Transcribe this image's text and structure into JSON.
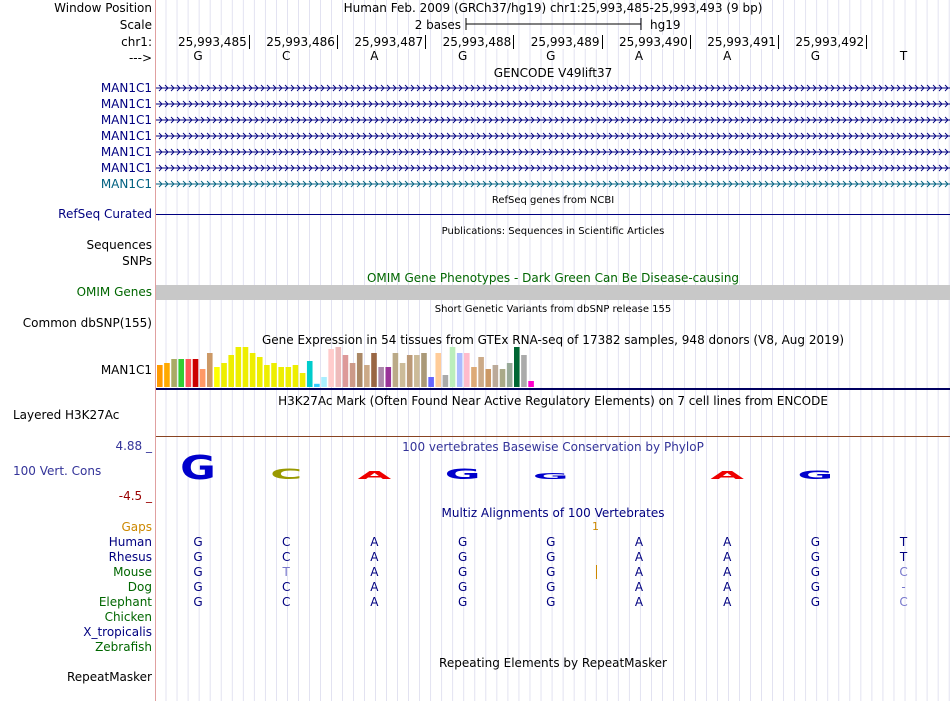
{
  "header": {
    "window_position_label": "Window Position",
    "window_position": "Human Feb. 2009 (GRCh37/hg19)   chr1:25,993,485-25,993,493 (9 bp)",
    "scale_label": "Scale",
    "scale_value": "2 bases",
    "scale_assembly": "hg19",
    "chrom_label": "chr1:",
    "strand_label": "--->",
    "positions": [
      "25,993,485",
      "25,993,486",
      "25,993,487",
      "25,993,488",
      "25,993,489",
      "25,993,490",
      "25,993,491",
      "25,993,492"
    ]
  },
  "bases": [
    "G",
    "C",
    "A",
    "G",
    "G",
    "A",
    "A",
    "G",
    "T"
  ],
  "tracks": {
    "gencode": {
      "title": "GENCODE V49lift37",
      "genes": [
        "MAN1C1",
        "MAN1C1",
        "MAN1C1",
        "MAN1C1",
        "MAN1C1",
        "MAN1C1",
        "MAN1C1"
      ]
    },
    "refseq": {
      "title": "RefSeq genes from NCBI",
      "label": "RefSeq Curated"
    },
    "publications": {
      "title": "Publications: Sequences in Scientific Articles",
      "label_sequences": "Sequences",
      "label_snps": "SNPs"
    },
    "omim": {
      "title": "OMIM Gene Phenotypes - Dark Green Can Be Disease-causing",
      "label": "OMIM Genes"
    },
    "dbsnp": {
      "title": "Short Genetic Variants from dbSNP release 155",
      "label": "Common dbSNP(155)"
    },
    "gtex": {
      "title": "Gene Expression in 54 tissues from GTEx RNA-seq of 17382 samples, 948 donors (V8, Aug 2019)",
      "label": "MAN1C1",
      "bars": [
        {
          "v": 0.55,
          "c": "#ff9900"
        },
        {
          "v": 0.6,
          "c": "#ffaa00"
        },
        {
          "v": 0.7,
          "c": "#aaaa66"
        },
        {
          "v": 0.7,
          "c": "#33cc33"
        },
        {
          "v": 0.7,
          "c": "#ff5555"
        },
        {
          "v": 0.7,
          "c": "#cc0000"
        },
        {
          "v": 0.45,
          "c": "#ff9966"
        },
        {
          "v": 0.85,
          "c": "#cc9966"
        },
        {
          "v": 0.5,
          "c": "#ffff00"
        },
        {
          "v": 0.6,
          "c": "#eeee00"
        },
        {
          "v": 0.8,
          "c": "#eeee00"
        },
        {
          "v": 1.0,
          "c": "#eeee00"
        },
        {
          "v": 1.0,
          "c": "#eeee00"
        },
        {
          "v": 0.85,
          "c": "#eeee00"
        },
        {
          "v": 0.75,
          "c": "#eeee00"
        },
        {
          "v": 0.55,
          "c": "#eeee00"
        },
        {
          "v": 0.6,
          "c": "#eeee00"
        },
        {
          "v": 0.5,
          "c": "#eeee00"
        },
        {
          "v": 0.5,
          "c": "#eeee00"
        },
        {
          "v": 0.55,
          "c": "#eeee00"
        },
        {
          "v": 0.35,
          "c": "#eeee00"
        },
        {
          "v": 0.65,
          "c": "#00cccc"
        },
        {
          "v": 0.08,
          "c": "#33ccff"
        },
        {
          "v": 0.25,
          "c": "#aaeeff"
        },
        {
          "v": 0.95,
          "c": "#ffcccc"
        },
        {
          "v": 1.0,
          "c": "#eebbbb"
        },
        {
          "v": 0.8,
          "c": "#dd9999"
        },
        {
          "v": 0.6,
          "c": "#cc9988"
        },
        {
          "v": 0.85,
          "c": "#aa8866"
        },
        {
          "v": 0.55,
          "c": "#ccaa88"
        },
        {
          "v": 0.85,
          "c": "#996644"
        },
        {
          "v": 0.5,
          "c": "#aa88aa"
        },
        {
          "v": 0.5,
          "c": "#993399"
        },
        {
          "v": 0.85,
          "c": "#bbaa88"
        },
        {
          "v": 0.6,
          "c": "#ccbb99"
        },
        {
          "v": 0.8,
          "c": "#bb9977"
        },
        {
          "v": 0.8,
          "c": "#ccbb99"
        },
        {
          "v": 0.85,
          "c": "#aa9977"
        },
        {
          "v": 0.25,
          "c": "#6666ff"
        },
        {
          "v": 0.85,
          "c": "#ffcc99"
        },
        {
          "v": 0.3,
          "c": "#aaaaaa"
        },
        {
          "v": 1.0,
          "c": "#bbeebb"
        },
        {
          "v": 0.85,
          "c": "#aabbff"
        },
        {
          "v": 0.85,
          "c": "#ffbbcc"
        },
        {
          "v": 0.5,
          "c": "#ddaa77"
        },
        {
          "v": 0.75,
          "c": "#ccaa88"
        },
        {
          "v": 0.45,
          "c": "#cc9966"
        },
        {
          "v": 0.55,
          "c": "#bbaa99"
        },
        {
          "v": 0.45,
          "c": "#aaaa88"
        },
        {
          "v": 0.6,
          "c": "#99aa99"
        },
        {
          "v": 1.0,
          "c": "#006633"
        },
        {
          "v": 0.8,
          "c": "#aaaaaa"
        },
        {
          "v": 0.15,
          "c": "#ff00cc"
        }
      ]
    },
    "h3k27ac": {
      "title": "H3K27Ac Mark (Often Found Near Active Regulatory Elements) on 7 cell lines from ENCODE",
      "label": "Layered H3K27Ac"
    },
    "phylop": {
      "title": "100 vertebrates Basewise Conservation by PhyloP",
      "label": "100 Vert. Cons",
      "max": "4.88 _",
      "min": "-4.5 _",
      "scores": [
        4.5,
        1.9,
        1.5,
        2.0,
        1.1,
        0,
        1.4,
        1.6,
        0
      ],
      "colors": {
        "G": "#0000cc",
        "C": "#999900",
        "A": "#ee0000",
        "T": "#009900"
      }
    },
    "multiz": {
      "title": "Multiz Alignments of 100 Vertebrates",
      "gaps_label": "Gaps",
      "gap_marker": "1",
      "species": [
        {
          "name": "Human",
          "seq": [
            "G",
            "C",
            "A",
            "G",
            "G",
            "A",
            "A",
            "G",
            "T"
          ]
        },
        {
          "name": "Rhesus",
          "seq": [
            "G",
            "C",
            "A",
            "G",
            "G",
            "A",
            "A",
            "G",
            "T"
          ]
        },
        {
          "name": "Mouse",
          "seq": [
            "G",
            "T",
            "A",
            "G",
            "G",
            "A",
            "A",
            "G",
            "C"
          ]
        },
        {
          "name": "Dog",
          "seq": [
            "G",
            "C",
            "A",
            "G",
            "G",
            "A",
            "A",
            "G",
            "-"
          ]
        },
        {
          "name": "Elephant",
          "seq": [
            "G",
            "C",
            "A",
            "G",
            "G",
            "A",
            "A",
            "G",
            "C"
          ]
        },
        {
          "name": "Chicken",
          "seq": [
            "",
            "",
            "",
            "",
            "",
            "",
            "",
            "",
            ""
          ]
        },
        {
          "name": "X_tropicalis",
          "seq": [
            "",
            "",
            "",
            "",
            "",
            "",
            "",
            "",
            ""
          ]
        },
        {
          "name": "Zebrafish",
          "seq": [
            "",
            "",
            "",
            "",
            "",
            "",
            "",
            "",
            ""
          ]
        }
      ]
    },
    "repeatmasker": {
      "title": "Repeating Elements by RepeatMasker",
      "label": "RepeatMasker"
    }
  },
  "colors": {
    "navy": "#000080",
    "gencode_last": "#006080",
    "green": "#006600",
    "orange": "#cc8800",
    "phylop_label": "#333399",
    "min_label": "#990000",
    "omim_bar": "#c8c8c8",
    "gridline": "#d0d0e8"
  }
}
